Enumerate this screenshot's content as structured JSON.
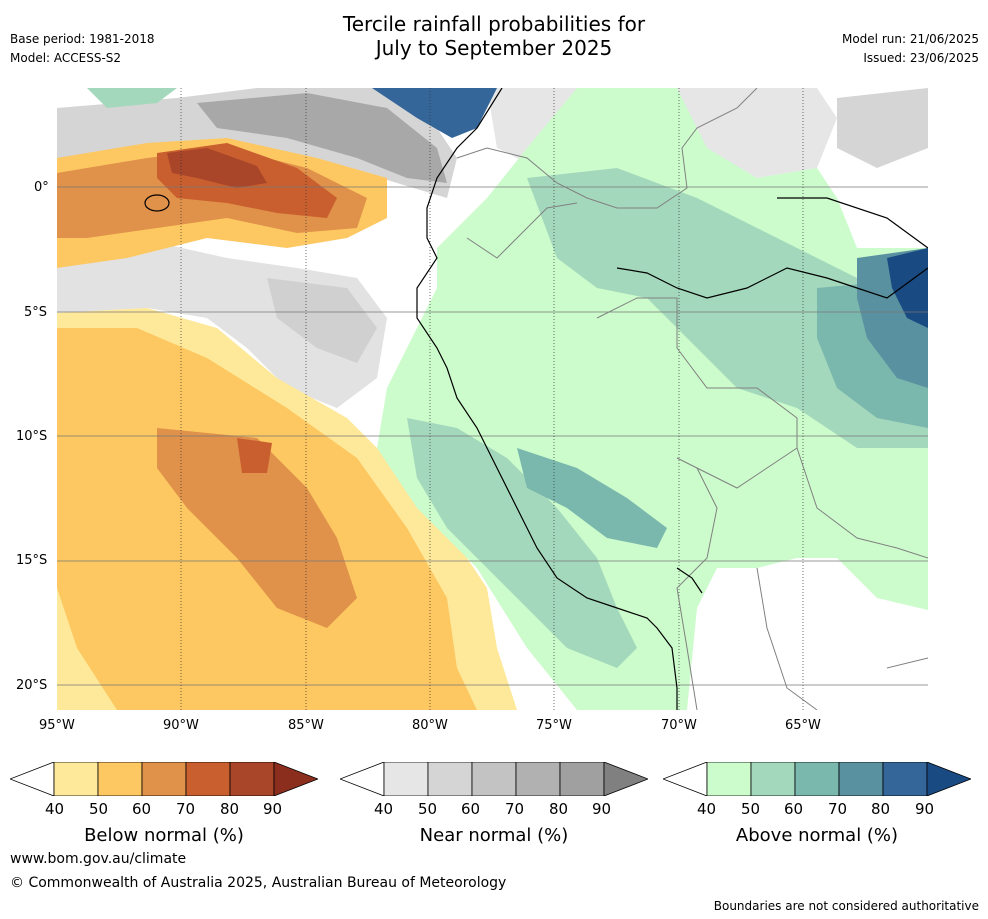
{
  "header": {
    "title_line1": "Tercile rainfall probabilities for",
    "title_line2": "July to September 2025",
    "base_period": "Base period: 1981-2018",
    "model": "Model: ACCESS-S2",
    "model_run": "Model run: 21/06/2025",
    "issued": "Issued: 23/06/2025"
  },
  "map": {
    "lat_ticks": [
      "0°",
      "5°S",
      "10°S",
      "15°S",
      "20°S"
    ],
    "lon_ticks": [
      "95°W",
      "90°W",
      "85°W",
      "80°W",
      "75°W",
      "70°W",
      "65°W"
    ],
    "lon_range": [
      -95,
      -60
    ],
    "lat_range": [
      -21,
      4
    ],
    "region": "South America west coast and eastern Pacific"
  },
  "legends": [
    {
      "title": "Below normal (%)",
      "labels": [
        "40",
        "50",
        "60",
        "70",
        "80",
        "90"
      ],
      "colors": [
        "#ffffff",
        "#fee99a",
        "#fdc861",
        "#e0914a",
        "#c95f2e",
        "#a9462a",
        "#8b2e1e"
      ]
    },
    {
      "title": "Near normal (%)",
      "labels": [
        "40",
        "50",
        "60",
        "70",
        "80",
        "90"
      ],
      "colors": [
        "#ffffff",
        "#e6e6e6",
        "#d5d5d5",
        "#c3c3c3",
        "#b1b1b1",
        "#a0a0a0",
        "#808080"
      ]
    },
    {
      "title": "Above normal (%)",
      "labels": [
        "40",
        "50",
        "60",
        "70",
        "80",
        "90"
      ],
      "colors": [
        "#ffffff",
        "#ccfccc",
        "#a4d8bc",
        "#7ab7ad",
        "#5a91a0",
        "#34669a",
        "#1a4a82"
      ]
    }
  ],
  "footer": {
    "website": "www.bom.gov.au/climate",
    "copyright": "© Commonwealth of Australia 2025, Australian Bureau of Meteorology",
    "disclaimer": "Boundaries are not considered authoritative"
  }
}
